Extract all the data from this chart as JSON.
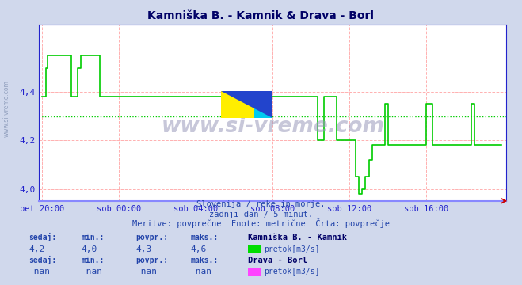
{
  "title": "Kamniška B. - Kamnik & Drava - Borl",
  "bg_color": "#d0d8ec",
  "plot_bg_color": "#ffffff",
  "grid_color_h": "#ffb0b0",
  "grid_color_v": "#ffb0b0",
  "avg_line_color": "#00cc00",
  "line_color_1": "#00cc00",
  "line_color_2": "#ff00ff",
  "axis_color": "#2222cc",
  "text_color": "#2244aa",
  "title_color": "#000066",
  "ylim": [
    3.95,
    4.68
  ],
  "yticks": [
    4.0,
    4.2,
    4.4
  ],
  "xlabel_ticks": [
    "pet 20:00",
    "sob 00:00",
    "sob 04:00",
    "sob 08:00",
    "sob 12:00",
    "sob 16:00"
  ],
  "avg_value": 4.3,
  "subtitle1": "Slovenija / reke in morje.",
  "subtitle2": "zadnji dan / 5 minut.",
  "subtitle3": "Meritve: povprečne  Enote: metrične  Črta: povprečje",
  "station1_name": "Kamniška B. - Kamnik",
  "station1_sedaj": "4,2",
  "station1_min": "4,0",
  "station1_povpr": "4,3",
  "station1_maks": "4,6",
  "station1_unit": "pretok[m3/s]",
  "station1_color": "#00dd00",
  "station2_name": "Drava - Borl",
  "station2_sedaj": "-nan",
  "station2_min": "-nan",
  "station2_povpr": "-nan",
  "station2_maks": "-nan",
  "station2_unit": "pretok[m3/s]",
  "station2_color": "#ff44ff",
  "watermark": "www.si-vreme.com"
}
